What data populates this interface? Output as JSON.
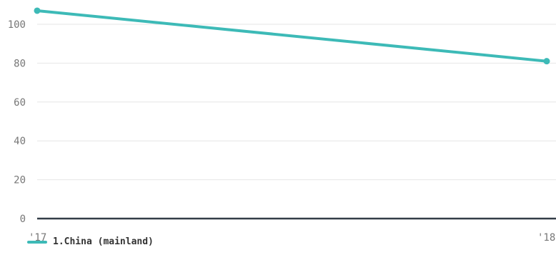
{
  "chart_data": {
    "type": "line",
    "x": [
      "'17",
      "'18"
    ],
    "series": [
      {
        "name": "1.China (mainland)",
        "values": [
          107,
          81
        ],
        "color": "#3dbab7"
      }
    ],
    "yticks": [
      0,
      20,
      40,
      60,
      80,
      100
    ],
    "ylim": [
      0,
      110
    ],
    "grid": true,
    "legend_position": "bottom-left",
    "colors": {
      "grid": "#e6e6e6",
      "baseline": "#333d47",
      "tick_text": "#777777"
    }
  }
}
